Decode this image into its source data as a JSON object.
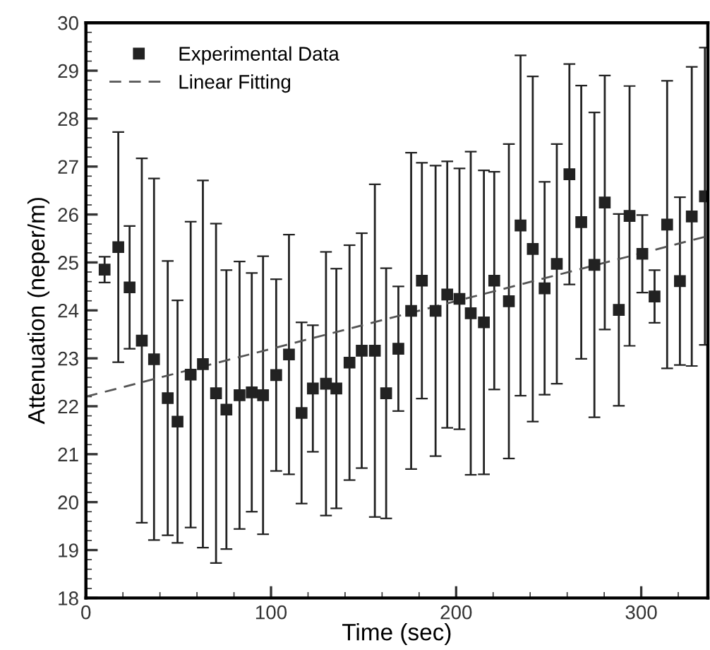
{
  "chart_data": {
    "type": "scatter",
    "xlabel": "Time (sec)",
    "ylabel": "Attenuation (neper/m)",
    "xlim": [
      0,
      336
    ],
    "ylim": [
      18,
      30
    ],
    "xticks": [
      0,
      100,
      200,
      300
    ],
    "yticks": [
      18,
      19,
      20,
      21,
      22,
      23,
      24,
      25,
      26,
      27,
      28,
      29,
      30
    ],
    "grid": false,
    "legend": "top left",
    "series": [
      {
        "name": "Experimental Data",
        "marker": "square",
        "color": "#222222",
        "x": [
          10.1,
          17.5,
          23.6,
          30.2,
          36.8,
          44.2,
          49.5,
          56.6,
          63.2,
          70.3,
          75.9,
          83.0,
          89.6,
          95.7,
          102.8,
          109.7,
          116.5,
          122.6,
          129.7,
          135.3,
          142.4,
          149.0,
          156.1,
          162.2,
          168.8,
          175.7,
          181.5,
          188.9,
          195.2,
          201.8,
          207.9,
          215.0,
          220.6,
          228.5,
          234.8,
          241.4,
          247.8,
          254.4,
          261.2,
          267.6,
          274.7,
          280.3,
          287.9,
          293.7,
          300.6,
          307.2,
          314.0,
          320.9,
          327.3,
          334.4
        ],
        "values": [
          24.85,
          25.32,
          24.48,
          23.37,
          22.98,
          22.17,
          21.68,
          22.66,
          22.88,
          22.27,
          21.93,
          22.23,
          22.29,
          22.23,
          22.65,
          23.08,
          21.86,
          22.37,
          22.47,
          22.37,
          22.91,
          23.16,
          23.16,
          22.27,
          23.2,
          23.99,
          24.62,
          23.99,
          24.33,
          24.24,
          23.94,
          23.75,
          24.62,
          24.19,
          25.77,
          25.28,
          24.46,
          24.97,
          26.84,
          25.84,
          24.95,
          26.25,
          24.01,
          25.97,
          25.18,
          24.29,
          25.79,
          24.61,
          25.96,
          26.38
        ],
        "errors": [
          0.27,
          2.4,
          1.28,
          3.8,
          3.77,
          2.86,
          2.53,
          3.19,
          3.83,
          3.54,
          2.91,
          2.79,
          2.49,
          2.9,
          2.0,
          2.5,
          1.89,
          1.32,
          2.75,
          2.5,
          2.45,
          2.45,
          3.47,
          2.61,
          1.3,
          3.3,
          2.46,
          3.03,
          2.78,
          2.72,
          3.37,
          3.17,
          2.27,
          3.28,
          3.55,
          3.6,
          2.22,
          2.5,
          2.3,
          2.85,
          3.18,
          2.65,
          2.0,
          2.71,
          0.81,
          0.55,
          3.0,
          1.75,
          3.12,
          3.1
        ]
      },
      {
        "name": "Linear Fitting",
        "type": "line",
        "line_style": "dashed",
        "marker": "none",
        "color": "#555555",
        "x": [
          0,
          336
        ],
        "values": [
          22.2,
          25.55
        ]
      }
    ]
  }
}
